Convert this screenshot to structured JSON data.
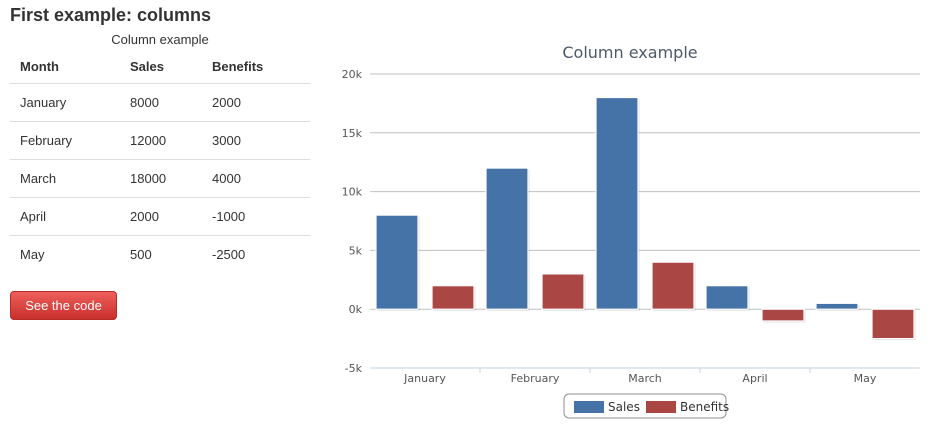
{
  "page": {
    "title": "First example: columns"
  },
  "table": {
    "caption": "Column example",
    "headers": [
      "Month",
      "Sales",
      "Benefits"
    ],
    "rows": [
      [
        "January",
        "8000",
        "2000"
      ],
      [
        "February",
        "12000",
        "3000"
      ],
      [
        "March",
        "18000",
        "4000"
      ],
      [
        "April",
        "2000",
        "-1000"
      ],
      [
        "May",
        "500",
        "-2500"
      ]
    ]
  },
  "button": {
    "label": "See the code"
  },
  "chart_data": {
    "type": "bar",
    "title": "Column example",
    "categories": [
      "January",
      "February",
      "March",
      "April",
      "May"
    ],
    "series": [
      {
        "name": "Sales",
        "values": [
          8000,
          12000,
          18000,
          2000,
          500
        ],
        "color": "#4572a7"
      },
      {
        "name": "Benefits",
        "values": [
          2000,
          3000,
          4000,
          -1000,
          -2500
        ],
        "color": "#aa4643"
      }
    ],
    "yticks": [
      "20k",
      "15k",
      "10k",
      "5k",
      "0k",
      "-5k"
    ],
    "ylim": [
      -5000,
      20000
    ],
    "grid": true,
    "legend": "bottom-center"
  }
}
